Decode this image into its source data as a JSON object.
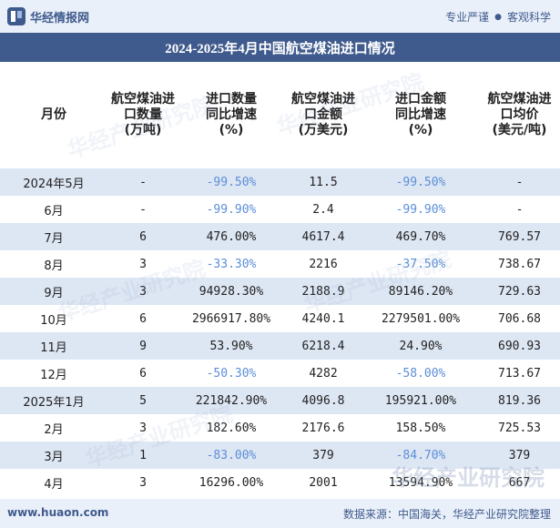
{
  "header": {
    "brand": "华经情报网",
    "tags": [
      "专业严谨",
      "客观科学"
    ]
  },
  "title": "2024-2025年4月中国航空煤油进口情况",
  "columns": [
    "月份",
    "航空煤油进\n口数量\n(万吨)",
    "进口数量\n同比增速\n(%)",
    "航空煤油进\n口金额\n(万美元)",
    "进口金额\n同比增速\n(%)",
    "航空煤油进\n口均价\n(美元/吨)"
  ],
  "rows": [
    [
      "2024年5月",
      "-",
      "-99.50%",
      "11.5",
      "-99.50%",
      "-"
    ],
    [
      "6月",
      "-",
      "-99.90%",
      "2.4",
      "-99.90%",
      "-"
    ],
    [
      "7月",
      "6",
      "476.00%",
      "4617.4",
      "469.70%",
      "769.57"
    ],
    [
      "8月",
      "3",
      "-33.30%",
      "2216",
      "-37.50%",
      "738.67"
    ],
    [
      "9月",
      "3",
      "94928.30%",
      "2188.9",
      "89146.20%",
      "729.63"
    ],
    [
      "10月",
      "6",
      "2966917.80%",
      "4240.1",
      "2279501.00%",
      "706.68"
    ],
    [
      "11月",
      "9",
      "53.90%",
      "6218.4",
      "24.90%",
      "690.93"
    ],
    [
      "12月",
      "6",
      "-50.30%",
      "4282",
      "-58.00%",
      "713.67"
    ],
    [
      "2025年1月",
      "5",
      "221842.90%",
      "4096.8",
      "195921.00%",
      "819.36"
    ],
    [
      "2月",
      "3",
      "182.60%",
      "2176.6",
      "158.50%",
      "725.53"
    ],
    [
      "3月",
      "1",
      "-83.00%",
      "379",
      "-84.70%",
      "379"
    ],
    [
      "4月",
      "3",
      "16296.00%",
      "2001",
      "13594.90%",
      "667"
    ]
  ],
  "watermark": "华经产业研究院",
  "footer": {
    "site": "www.huaon.com",
    "source": "数据来源：中国海关，华经产业研究院整理"
  },
  "colors": {
    "brand": "#3f5a8d",
    "negative": "#5b8ed8",
    "row_shade": "#dde6f3",
    "band": "#eaf0f9"
  }
}
